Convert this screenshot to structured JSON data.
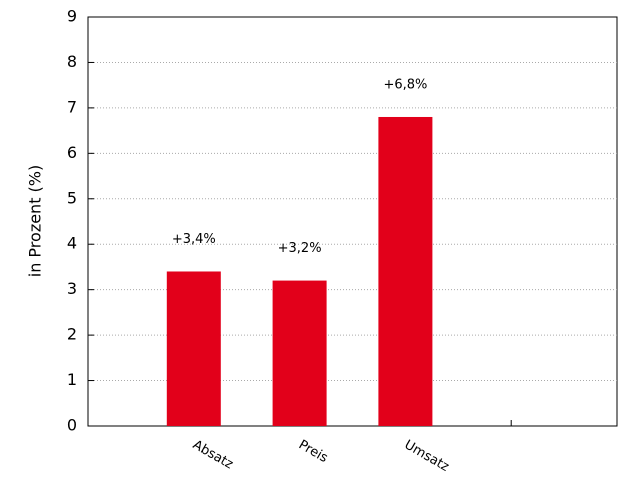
{
  "chart_data": {
    "type": "bar",
    "categories": [
      "Absatz",
      "Preis",
      "Umsatz",
      null
    ],
    "values": [
      3.4,
      3.2,
      6.8,
      null
    ],
    "value_labels": [
      "+3,4%",
      "+3,2%",
      "+6,8%",
      null
    ],
    "color": "#e2001a",
    "y_label": "in Prozent (%)",
    "ylim": [
      0,
      9
    ],
    "yticks": [
      0,
      1,
      2,
      3,
      4,
      5,
      6,
      7,
      8,
      9
    ],
    "grid": true
  }
}
